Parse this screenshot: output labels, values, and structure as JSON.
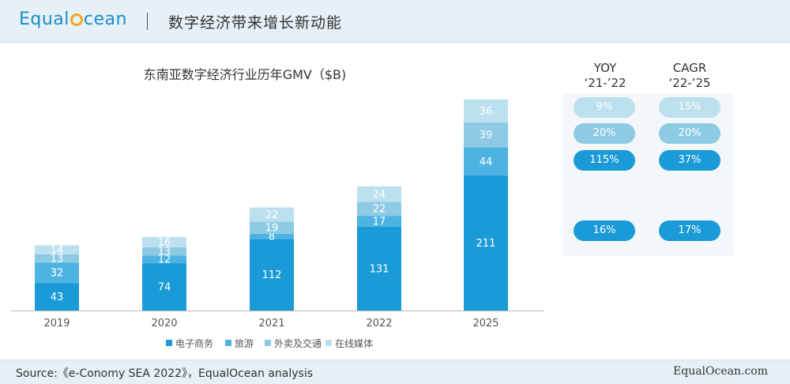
{
  "header": {
    "logo_before": "Equal",
    "logo_after": "cean",
    "title": "数字经济带来增长新动能"
  },
  "chart_data": {
    "type": "bar",
    "stacked": true,
    "title": "东南亚数字经济行业历年GMV（$B)",
    "categories": [
      "2019",
      "2020",
      "2021",
      "2022",
      "2025"
    ],
    "series": [
      {
        "name": "电子商务",
        "color": "#1a9bd7",
        "values": [
          43,
          74,
          112,
          131,
          211
        ]
      },
      {
        "name": "旅游",
        "color": "#4db3e2",
        "values": [
          32,
          12,
          8,
          17,
          44
        ]
      },
      {
        "name": "外卖及交通",
        "color": "#8dcbe4",
        "values": [
          13,
          13,
          19,
          22,
          39
        ]
      },
      {
        "name": "在线媒体",
        "color": "#bde0ef",
        "values": [
          14,
          16,
          22,
          24,
          36
        ]
      }
    ],
    "legend_position": "bottom",
    "grid": false
  },
  "growth": {
    "yoy": {
      "line1": "YOY",
      "line2": "‘21-’22",
      "values": [
        "9%",
        "20%",
        "115%",
        "16%"
      ]
    },
    "cagr": {
      "line1": "CAGR",
      "line2": "‘22-’25",
      "values": [
        "15%",
        "20%",
        "37%",
        "17%"
      ]
    }
  },
  "footer": {
    "source": "Source:《e-Conomy SEA 2022》，EqualOcean analysis",
    "brand": "EqualOcean.com"
  }
}
